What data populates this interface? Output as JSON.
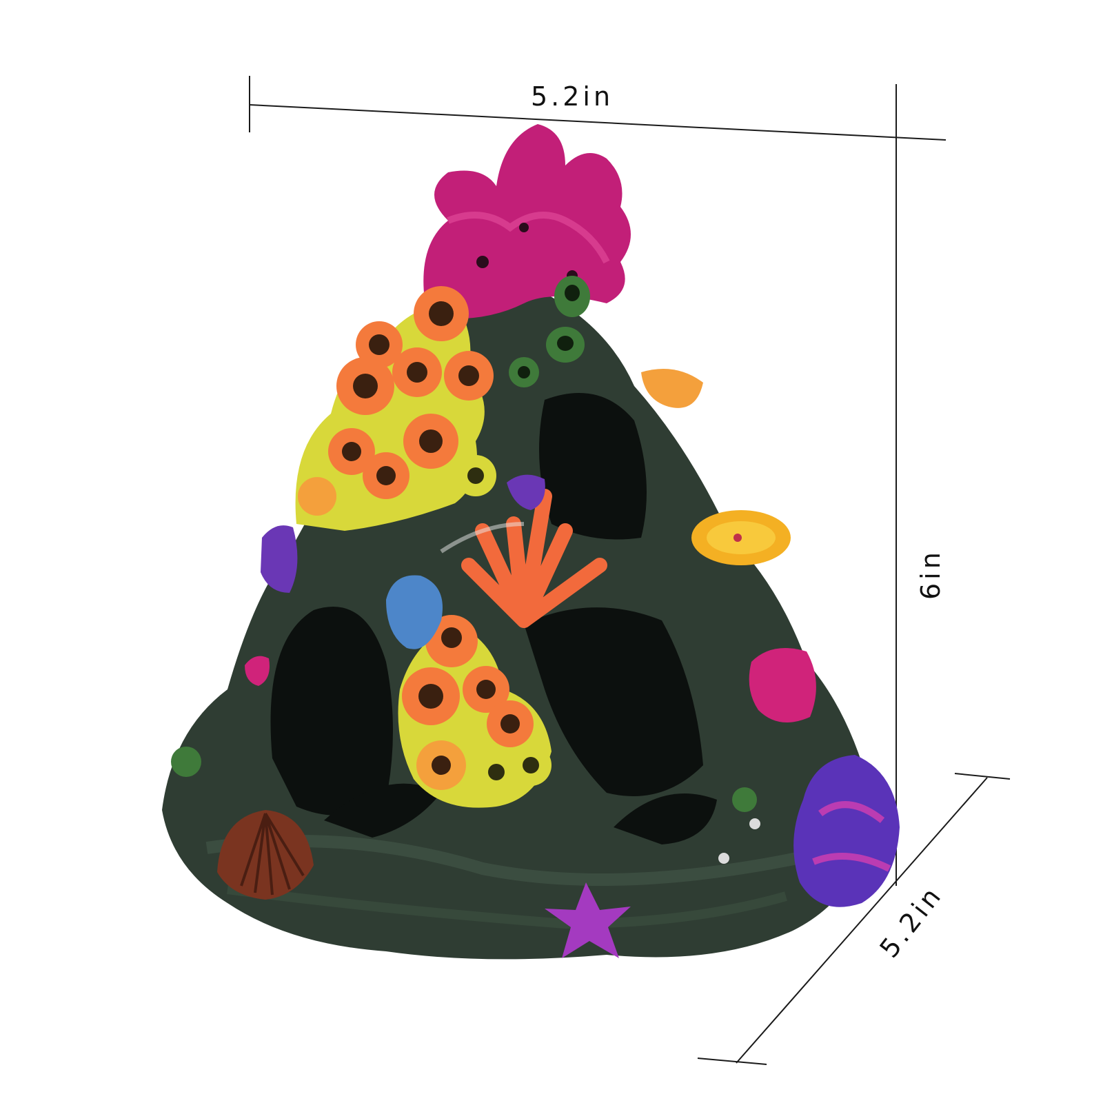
{
  "dimensions": {
    "width_label": "5.2in",
    "height_label": "6in",
    "depth_label": "5.2in"
  },
  "product": {
    "icon": "coral-reef-ornament-icon"
  },
  "colors": {
    "background": "#ffffff",
    "rock": "#2f3d33",
    "rock_dark": "#141b17",
    "coral_pink": "#d0237a",
    "coral_magenta": "#b31c6a",
    "tube_orange": "#f47a3c",
    "tube_yellow": "#d8d83a",
    "tube_green": "#3f7a3a",
    "coral_purple": "#5a33b8",
    "coral_blue": "#4d86c9",
    "shell_brown": "#7a3420",
    "line": "#1a1a1a"
  }
}
